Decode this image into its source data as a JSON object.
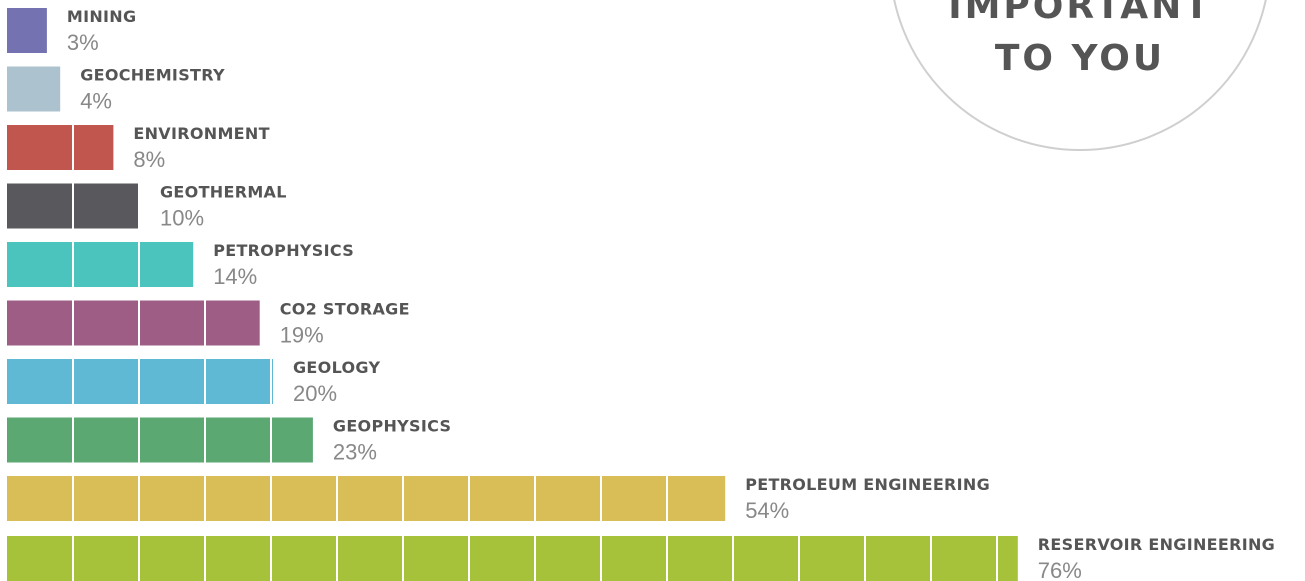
{
  "chart_data": {
    "type": "bar",
    "annotations": [
      "IMPORTANT",
      "TO YOU"
    ],
    "categories": [
      "MINING",
      "GEOCHEMISTRY",
      "ENVIRONMENT",
      "GEOTHERMAL",
      "PETROPHYSICS",
      "CO2 STORAGE",
      "GEOLOGY",
      "GEOPHYSICS",
      "PETROLEUM ENGINEERING",
      "RESERVOIR ENGINEERING"
    ],
    "values": [
      3,
      4,
      8,
      10,
      14,
      19,
      20,
      23,
      54,
      76
    ],
    "value_labels": [
      "3%",
      "4%",
      "8%",
      "10%",
      "14%",
      "19%",
      "20%",
      "23%",
      "54%",
      "76%"
    ],
    "colors": [
      "#7472b0",
      "#adc2cf",
      "#c1564f",
      "#58585d",
      "#4bc4be",
      "#9e5d85",
      "#5fb8d4",
      "#5ba873",
      "#d9bd56",
      "#a6c13a"
    ]
  }
}
